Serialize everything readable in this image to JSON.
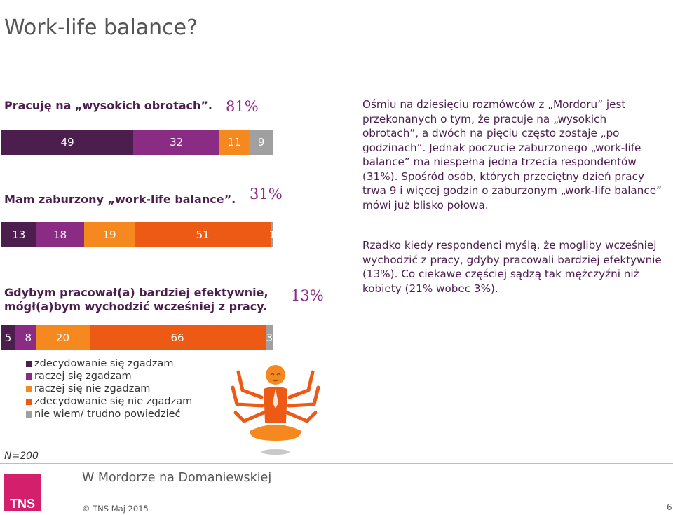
{
  "title": "Work-life balance?",
  "chart_data": [
    {
      "type": "bar",
      "title": "Pracuję na „wysokich obrotach”.",
      "total_label": "81%",
      "values": [
        49,
        32,
        11,
        9
      ]
    },
    {
      "type": "bar",
      "title": "Mam zaburzony „work-life balance”.",
      "total_label": "31%",
      "values": [
        13,
        18,
        19,
        51,
        1
      ]
    },
    {
      "type": "bar",
      "title_lines": [
        "Gdybym pracował(a) bardziej efektywnie,",
        "mógł(a)bym wychodzić wcześniej z pracy."
      ],
      "total_label": "13%",
      "values": [
        5,
        8,
        20,
        66,
        3
      ]
    }
  ],
  "categories": [
    "zdecydowanie się zgadzam",
    "raczej się zgadzam",
    "raczej się nie zgadzam",
    "zdecydowanie się nie zgadzam",
    "nie wiem/ trudno powiedzieć"
  ],
  "colors": {
    "zdecydowanie_sie_zgadzam": "#4b1e4e",
    "raczej_sie_zgadzam": "#8a2c84",
    "raczej_sie_nie_zgadzam": "#f5891f",
    "zdecydowanie_sie_nie_zgadzam": "#ec5a15",
    "nie_wiem": "#a0a0a0",
    "text_purple": "#4b1e4e",
    "logo_magenta": "#d31f6c"
  },
  "paragraph1": "Ośmiu na dziesięciu rozmówców z „Mordoru” jest przekonanych o tym, że pracuje na „wysokich obrotach”, a dwóch na pięciu często zostaje „po godzinach”. Jednak poczucie zaburzonego „work-life balance” ma niespełna jedna trzecia respondentów (31%). Spośród osób, których przeciętny dzień pracy trwa 9 i więcej godzin o zaburzonym „work-life balance” mówi już blisko połowa.",
  "paragraph2": "Rzadko kiedy respondenci myślą, że mogliby wcześniej wychodzić z pracy, gdyby pracowali bardziej efektywnie (13%). Co ciekawe częściej sądzą tak mężczyźni niż kobiety (21% wobec 3%).",
  "footer": {
    "base": "N=200",
    "subtitle": "W Mordorze na Domaniewskiej",
    "copyright": "© TNS Maj 2015",
    "page_number": "6",
    "logo_text": "TNS"
  },
  "icons": {
    "figure": "meditating-multi-armed-worker-illustration",
    "logo": "tns-logo"
  }
}
